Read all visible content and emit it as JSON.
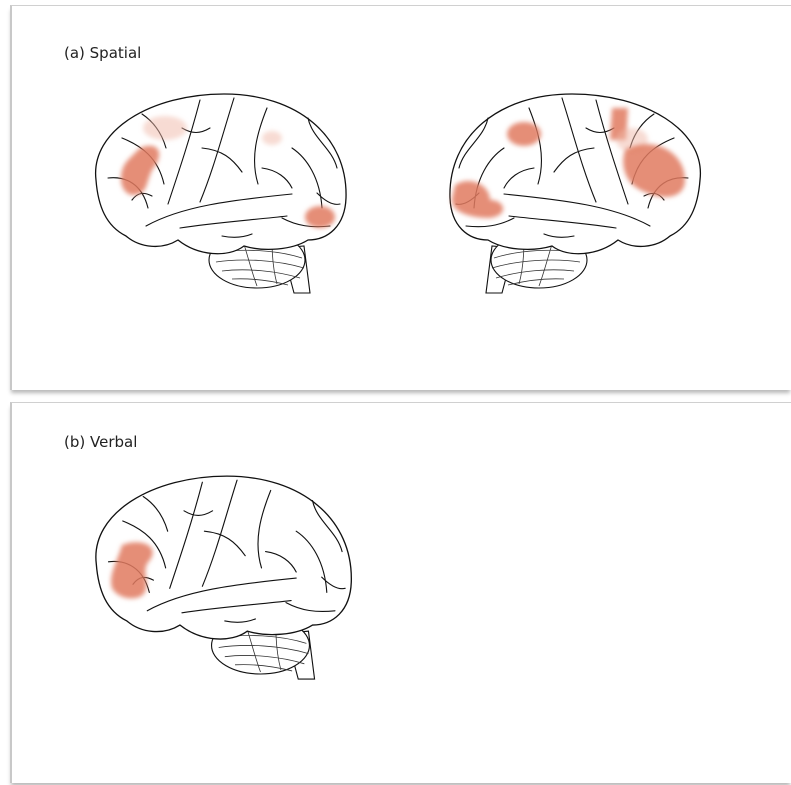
{
  "panels": [
    {
      "label": "(a) Spatial"
    },
    {
      "label": "(b) Verbal"
    }
  ]
}
